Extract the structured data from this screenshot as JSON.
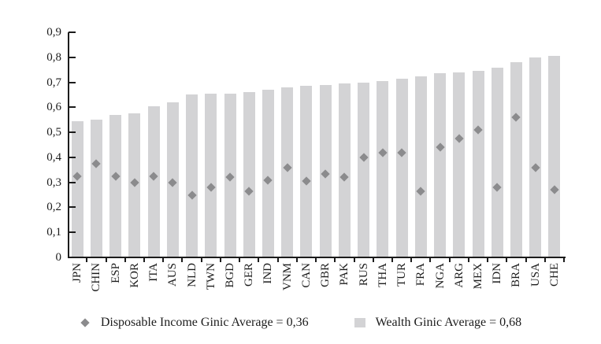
{
  "chart_data": {
    "type": "bar",
    "title": "",
    "xlabel": "",
    "ylabel": "",
    "categories": [
      "JPN",
      "CHIN",
      "ESP",
      "KOR",
      "ITA",
      "AUS",
      "NLD",
      "TWN",
      "BGD",
      "GER",
      "IND",
      "VNM",
      "CAN",
      "GBR",
      "PAK",
      "RUS",
      "THA",
      "TUR",
      "FRA",
      "NGA",
      "ARG",
      "MEX",
      "IDN",
      "BRA",
      "USA",
      "CHE"
    ],
    "series": [
      {
        "name": "Wealth Ginic Average = 0,68",
        "type": "bar",
        "color": "#d3d3d5",
        "values": [
          0.545,
          0.55,
          0.57,
          0.575,
          0.605,
          0.62,
          0.65,
          0.655,
          0.655,
          0.66,
          0.67,
          0.68,
          0.685,
          0.69,
          0.695,
          0.7,
          0.705,
          0.715,
          0.725,
          0.735,
          0.74,
          0.745,
          0.76,
          0.78,
          0.8,
          0.805
        ]
      },
      {
        "name": "Disposable Income Ginic Average = 0,36",
        "type": "scatter",
        "marker": "diamond",
        "color": "#8b8b8d",
        "values": [
          0.325,
          0.375,
          0.325,
          0.3,
          0.325,
          0.3,
          0.25,
          0.28,
          0.32,
          0.265,
          0.31,
          0.36,
          0.305,
          0.335,
          0.32,
          0.4,
          0.42,
          0.42,
          0.265,
          0.44,
          0.475,
          0.51,
          0.28,
          0.56,
          0.36,
          0.27
        ]
      }
    ],
    "ylim": [
      0,
      0.9
    ],
    "ytick_labels": [
      "0",
      "0,1",
      "0,2",
      "0,3",
      "0,4",
      "0,5",
      "0,6",
      "0,7",
      "0,8",
      "0,9"
    ],
    "decimal_separator": ",",
    "grid": false,
    "legend_position": "bottom",
    "income_gini_average": "0,36",
    "wealth_gini_average": "0,68"
  },
  "legend": {
    "income_label": "Disposable Income Ginic Average = 0,36",
    "wealth_label": "Wealth Ginic Average = 0,68"
  },
  "colors": {
    "bar": "#d3d3d5",
    "diamond": "#8b8b8d",
    "axis": "#1c1c1c",
    "background": "#ffffff"
  }
}
